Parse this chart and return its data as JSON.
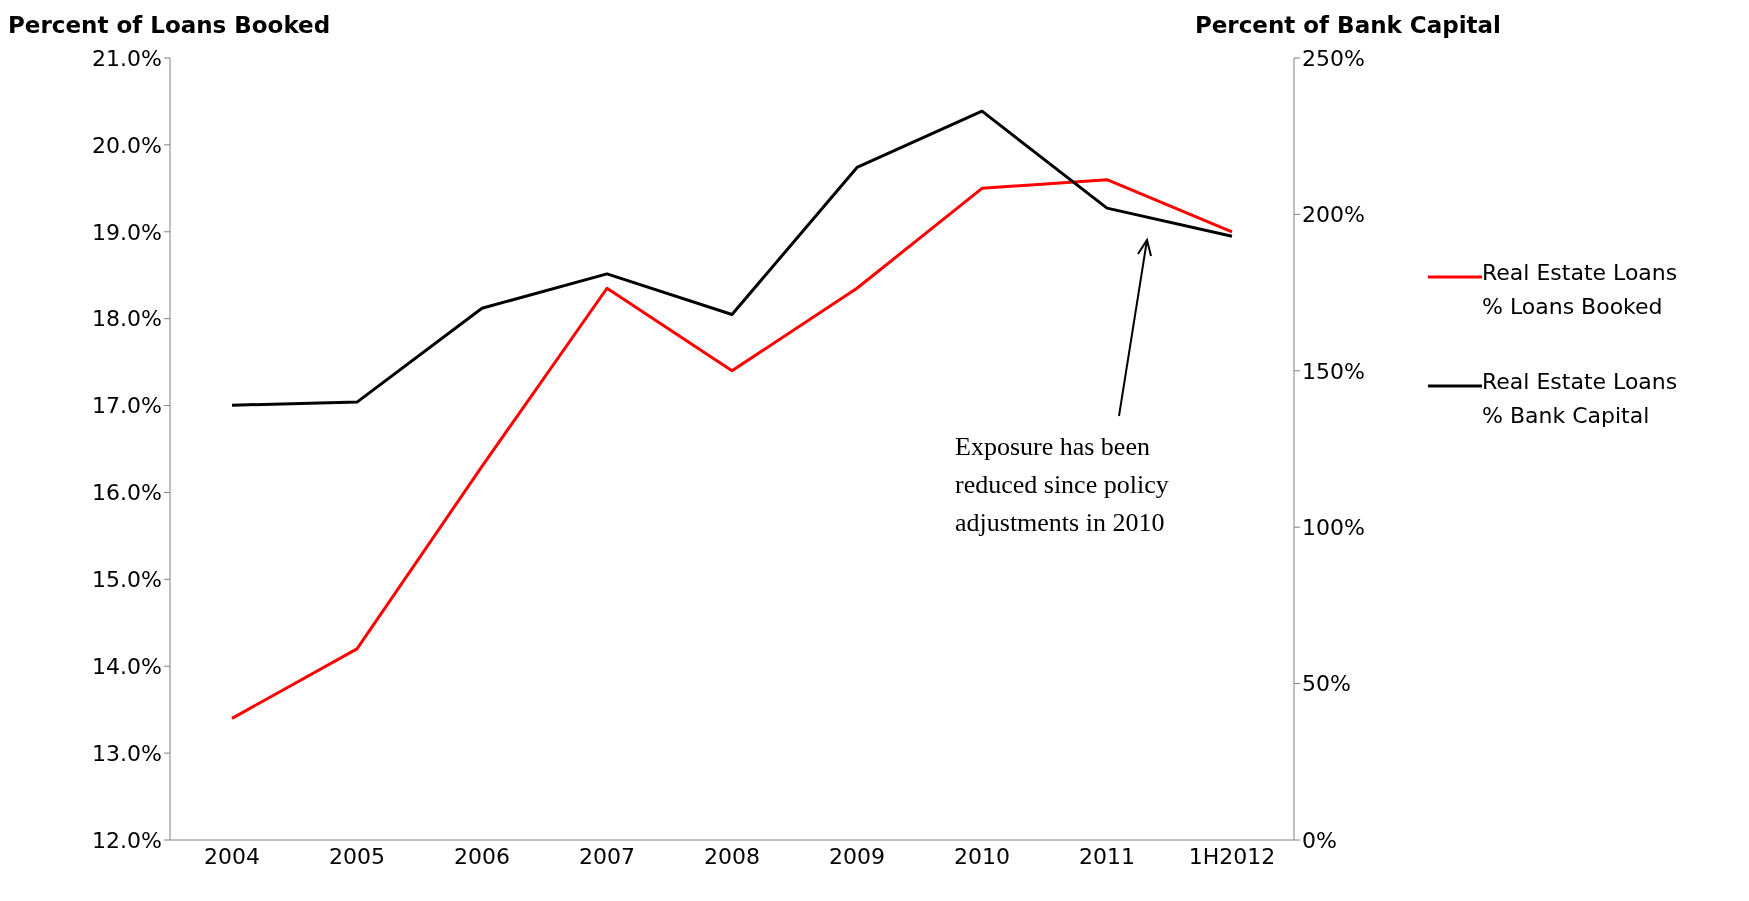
{
  "chart_data": {
    "type": "line",
    "ylabel": "Percent of Loans Booked",
    "y2label": "Percent of Bank Capital",
    "categories": [
      "2004",
      "2005",
      "2006",
      "2007",
      "2008",
      "2009",
      "2010",
      "2011",
      "1H2012"
    ],
    "series": [
      {
        "name": "Real Estate Loans % Loans Booked",
        "color": "#ff0000",
        "values": [
          13.4,
          14.2,
          16.3,
          18.35,
          17.4,
          18.35,
          19.5,
          19.6,
          19.0
        ]
      },
      {
        "name": "Real Estate Loans % Bank Capital",
        "color": "#000000",
        "axis": "y2",
        "values": [
          139,
          140,
          170,
          181,
          168,
          215,
          233,
          202,
          193
        ]
      }
    ],
    "ylim": [
      12,
      21
    ],
    "yticks": [
      {
        "value": 12,
        "label": "12.0%"
      },
      {
        "value": 13,
        "label": "13.0%"
      },
      {
        "value": 14,
        "label": "14.0%"
      },
      {
        "value": 15,
        "label": "15.0%"
      },
      {
        "value": 16,
        "label": "16.0%"
      },
      {
        "value": 17,
        "label": "17.0%"
      },
      {
        "value": 18,
        "label": "18.0%"
      },
      {
        "value": 19,
        "label": "19.0%"
      },
      {
        "value": 20,
        "label": "20.0%"
      },
      {
        "value": 21,
        "label": "21.0%"
      }
    ],
    "y2lim": [
      0,
      250
    ],
    "y2ticks": [
      {
        "value": 0,
        "label": "0%"
      },
      {
        "value": 50,
        "label": "50%"
      },
      {
        "value": 100,
        "label": "100%"
      },
      {
        "value": 150,
        "label": "150%"
      },
      {
        "value": 200,
        "label": "200%"
      },
      {
        "value": 250,
        "label": "250%"
      }
    ],
    "annotations": [
      "Exposure has been reduced since policy adjustments in 2010"
    ],
    "grid": false,
    "legend": "right",
    "marker": "none",
    "line_style": "solid"
  }
}
